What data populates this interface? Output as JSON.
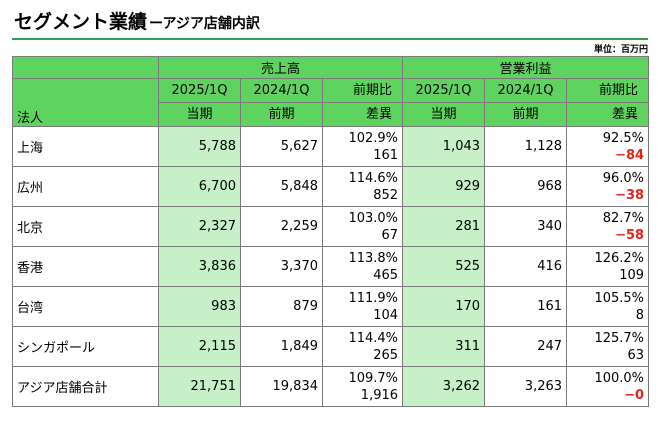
{
  "header": {
    "title": "セグメント業績",
    "subtitle": "ーアジア店舗内訳",
    "unit": "単位：百万円"
  },
  "columns": {
    "corp_label": "法人",
    "group_sales": "売上高",
    "group_op": "営業利益",
    "sales_cur_period": "2025/1Q",
    "sales_cur_label": "当期",
    "sales_prev_period": "2024/1Q",
    "sales_prev_label": "前期",
    "sales_diff_top": "前期比",
    "sales_diff_bottom": "差異",
    "op_cur_period": "2025/1Q",
    "op_cur_label": "当期",
    "op_prev_period": "2024/1Q",
    "op_prev_label": "前期",
    "op_diff_top": "前期比",
    "op_diff_bottom": "差異"
  },
  "rows": [
    {
      "name": "上海",
      "sales_cur": "5,788",
      "sales_prev": "5,627",
      "sales_ratio": "102.9%",
      "sales_diff": "161",
      "op_cur": "1,043",
      "op_prev": "1,128",
      "op_ratio": "92.5%",
      "op_diff": "−84"
    },
    {
      "name": "広州",
      "sales_cur": "6,700",
      "sales_prev": "5,848",
      "sales_ratio": "114.6%",
      "sales_diff": "852",
      "op_cur": "929",
      "op_prev": "968",
      "op_ratio": "96.0%",
      "op_diff": "−38"
    },
    {
      "name": "北京",
      "sales_cur": "2,327",
      "sales_prev": "2,259",
      "sales_ratio": "103.0%",
      "sales_diff": "67",
      "op_cur": "281",
      "op_prev": "340",
      "op_ratio": "82.7%",
      "op_diff": "−58"
    },
    {
      "name": "香港",
      "sales_cur": "3,836",
      "sales_prev": "3,370",
      "sales_ratio": "113.8%",
      "sales_diff": "465",
      "op_cur": "525",
      "op_prev": "416",
      "op_ratio": "126.2%",
      "op_diff": "109"
    },
    {
      "name": "台湾",
      "sales_cur": "983",
      "sales_prev": "879",
      "sales_ratio": "111.9%",
      "sales_diff": "104",
      "op_cur": "170",
      "op_prev": "161",
      "op_ratio": "105.5%",
      "op_diff": "8"
    },
    {
      "name": "シンガポール",
      "sales_cur": "2,115",
      "sales_prev": "1,849",
      "sales_ratio": "114.4%",
      "sales_diff": "265",
      "op_cur": "311",
      "op_prev": "247",
      "op_ratio": "125.7%",
      "op_diff": "63"
    },
    {
      "name": "アジア店舗合計",
      "sales_cur": "21,751",
      "sales_prev": "19,834",
      "sales_ratio": "109.7%",
      "sales_diff": "1,916",
      "op_cur": "3,262",
      "op_prev": "3,263",
      "op_ratio": "100.0%",
      "op_diff": "−0"
    }
  ],
  "colors": {
    "header_green": "#5fd35f",
    "current_period_fill": "#c8f0c8",
    "negative_red": "#e8231a",
    "title_rule": "#2f9e4f"
  }
}
